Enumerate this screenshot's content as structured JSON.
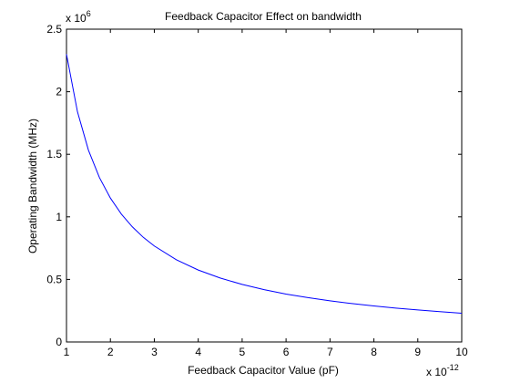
{
  "chart_data": {
    "type": "line",
    "title": "Feedback Capacitor Effect on bandwidth",
    "xlabel": "Feedback Capacitor Value (pF)",
    "ylabel": "Operating Bandwidth (MHz)",
    "x_exponent_label": {
      "prefix": "x 10",
      "exponent": "-12"
    },
    "y_exponent_label": {
      "prefix": "x 10",
      "exponent": "6"
    },
    "xlim": [
      1,
      10
    ],
    "ylim": [
      0,
      2.5
    ],
    "xticks": [
      1,
      2,
      3,
      4,
      5,
      6,
      7,
      8,
      9,
      10
    ],
    "yticks": [
      0,
      0.5,
      1,
      1.5,
      2,
      2.5
    ],
    "xtick_labels": [
      "1",
      "2",
      "3",
      "4",
      "5",
      "6",
      "7",
      "8",
      "9",
      "10"
    ],
    "ytick_labels": [
      "0",
      "0.5",
      "1",
      "1.5",
      "2",
      "2.5"
    ],
    "grid": false,
    "line_color": "#0000ff",
    "axis_color": "#000000",
    "series": [
      {
        "x": [
          1,
          1.25,
          1.5,
          1.75,
          2,
          2.25,
          2.5,
          2.75,
          3,
          3.5,
          4,
          4.5,
          5,
          5.5,
          6,
          6.5,
          7,
          7.5,
          8,
          8.5,
          9,
          9.5,
          10
        ],
        "y": [
          2.3,
          1.84,
          1.533,
          1.314,
          1.15,
          1.022,
          0.92,
          0.836,
          0.767,
          0.657,
          0.575,
          0.511,
          0.46,
          0.418,
          0.383,
          0.354,
          0.329,
          0.307,
          0.288,
          0.271,
          0.256,
          0.242,
          0.23
        ]
      }
    ]
  }
}
